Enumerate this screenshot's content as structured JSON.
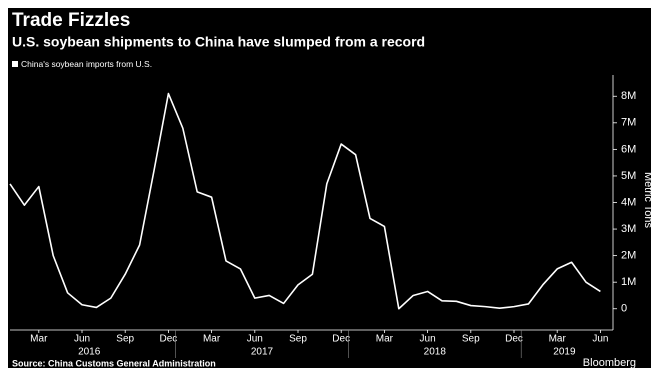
{
  "chart_data": {
    "type": "line",
    "title": "Trade Fizzles",
    "subtitle": "U.S. soybean shipments to China have slumped from a record",
    "y_label": "Metric Tons",
    "source": "Source: China Customs General Administration",
    "brand": "Bloomberg",
    "categories": [
      null,
      null,
      "Mar",
      null,
      null,
      "Jun",
      null,
      null,
      "Sep",
      null,
      null,
      "Dec",
      null,
      null,
      "Mar",
      null,
      null,
      "Jun",
      null,
      null,
      "Sep",
      null,
      null,
      "Dec",
      null,
      null,
      "Mar",
      null,
      null,
      "Jun",
      null,
      null,
      "Sep",
      null,
      null,
      "Dec",
      null,
      null,
      "Mar",
      null,
      null,
      "Jun"
    ],
    "year_labels": [
      "2016",
      "2017",
      "2018",
      "2019"
    ],
    "series": [
      {
        "name": "China's soybean imports from U.S.",
        "color": "#ffffff",
        "values": [
          4700000,
          3900000,
          4600000,
          2000000,
          600000,
          150000,
          50000,
          400000,
          1300000,
          2400000,
          5200000,
          8100000,
          6800000,
          4400000,
          4200000,
          1800000,
          1500000,
          400000,
          500000,
          200000,
          900000,
          1300000,
          4700000,
          6200000,
          5800000,
          3400000,
          3100000,
          0,
          500000,
          650000,
          300000,
          280000,
          120000,
          80000,
          20000,
          80000,
          180000,
          900000,
          1500000,
          1750000,
          1000000,
          650000
        ]
      }
    ],
    "ylim": [
      -800000,
      8800000
    ],
    "yticks": [
      0,
      {
        "value": 1000000,
        "label": "1M"
      },
      {
        "value": 2000000,
        "label": "2M"
      },
      {
        "value": 3000000,
        "label": "3M"
      },
      {
        "value": 4000000,
        "label": "4M"
      },
      {
        "value": 5000000,
        "label": "5M"
      },
      {
        "value": 6000000,
        "label": "6M"
      },
      {
        "value": 7000000,
        "label": "7M"
      },
      {
        "value": 8000000,
        "label": "8M"
      }
    ],
    "background": "#000000"
  }
}
